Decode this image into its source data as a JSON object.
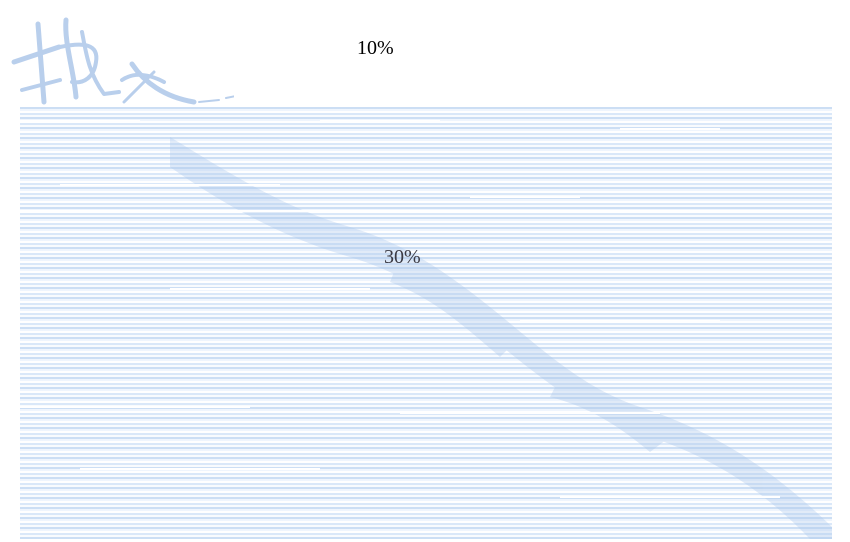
{
  "labels": {
    "top_percent": "10%",
    "middle_percent": "30%"
  },
  "watermark_icon": "calligraphy-brush-glyph",
  "colors": {
    "stripe": "#c6dbf3",
    "stripe_light": "#e8f1fc",
    "watermark": "#b9cfec",
    "text": "#000000"
  }
}
